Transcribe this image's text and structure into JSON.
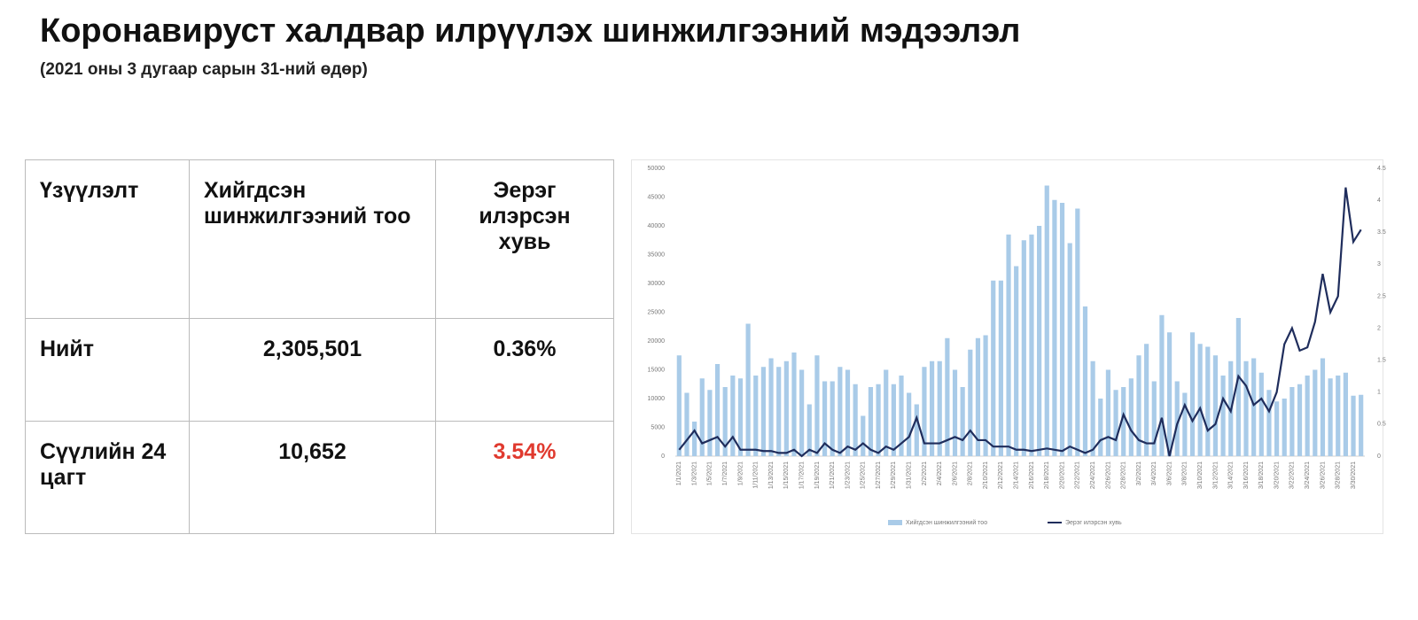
{
  "header": {
    "title": "Коронавируст халдвар илрүүлэх шинжилгээний мэдээлэл",
    "subtitle": "(2021 оны 3 дугаар сарын 31-ний өдөр)"
  },
  "table": {
    "columns": [
      "Үзүүлэлт",
      "Хийгдсэн шинжилгээний тоо",
      "Эерэг илэрсэн хувь"
    ],
    "rows": [
      [
        "Нийт",
        "2,305,501",
        "0.36%"
      ],
      [
        "Сүүлийн 24 цагт",
        "10,652",
        "3.54%"
      ]
    ]
  },
  "chart_data": {
    "type": "bar",
    "categories": [
      "1/1/2021",
      null,
      "1/3/2021",
      null,
      "1/5/2021",
      null,
      "1/7/2021",
      null,
      "1/9/2021",
      null,
      "1/11/2021",
      null,
      "1/13/2021",
      null,
      "1/15/2021",
      null,
      "1/17/2021",
      null,
      "1/19/2021",
      null,
      "1/21/2021",
      null,
      "1/23/2021",
      null,
      "1/25/2021",
      null,
      "1/27/2021",
      null,
      "1/29/2021",
      null,
      "1/31/2021",
      null,
      "2/2/2021",
      null,
      "2/4/2021",
      null,
      "2/6/2021",
      null,
      "2/8/2021",
      null,
      "2/10/2021",
      null,
      "2/12/2021",
      null,
      "2/14/2021",
      null,
      "2/16/2021",
      null,
      "2/18/2021",
      null,
      "2/20/2021",
      null,
      "2/22/2021",
      null,
      "2/24/2021",
      null,
      "2/26/2021",
      null,
      "2/28/2021",
      null,
      "3/2/2021",
      null,
      "3/4/2021",
      null,
      "3/6/2021",
      null,
      "3/8/2021",
      null,
      "3/10/2021",
      null,
      "3/12/2021",
      null,
      "3/14/2021",
      null,
      "3/16/2021",
      null,
      "3/18/2021",
      null,
      "3/20/2021",
      null,
      "3/22/2021",
      null,
      "3/24/2021",
      null,
      "3/26/2021",
      null,
      "3/28/2021",
      null,
      "3/30/2021",
      null
    ],
    "series": [
      {
        "name": "Хийгдсэн шинжилгээний тоо",
        "color": "#a9cbe8",
        "values": [
          17500,
          11000,
          6000,
          13500,
          11500,
          16000,
          12000,
          14000,
          13500,
          23000,
          14000,
          15500,
          17000,
          15500,
          16500,
          18000,
          15000,
          9000,
          17500,
          13000,
          13000,
          15500,
          15000,
          12500,
          7000,
          12000,
          12500,
          15000,
          12500,
          14000,
          11000,
          9000,
          15500,
          16500,
          16500,
          20500,
          15000,
          12000,
          18500,
          20500,
          21000,
          30500,
          30500,
          38500,
          33000,
          37500,
          38500,
          40000,
          47000,
          44500,
          44000,
          37000,
          43000,
          26000,
          16500,
          10000,
          15000,
          11500,
          12000,
          13500,
          17500,
          19500,
          13000,
          24500,
          21500,
          13000,
          11000,
          21500,
          19500,
          19000,
          17500,
          14000,
          16500,
          24000,
          16500,
          17000,
          14500,
          11500,
          9500,
          10000,
          12000,
          12500,
          14000,
          15000,
          17000,
          13500,
          14000,
          14500,
          10500,
          10652
        ]
      },
      {
        "name": "Эерэг илэрсэн хувь",
        "color": "#1f2d5c",
        "type": "line",
        "axis": "y2",
        "values": [
          0.1,
          0.25,
          0.4,
          0.2,
          0.25,
          0.3,
          0.15,
          0.3,
          0.1,
          0.1,
          0.1,
          0.08,
          0.08,
          0.05,
          0.05,
          0.1,
          0,
          0.1,
          0.05,
          0.2,
          0.1,
          0.05,
          0.15,
          0.1,
          0.2,
          0.1,
          0.05,
          0.15,
          0.1,
          0.2,
          0.3,
          0.6,
          0.2,
          0.2,
          0.2,
          0.25,
          0.3,
          0.25,
          0.4,
          0.25,
          0.25,
          0.15,
          0.15,
          0.15,
          0.1,
          0.1,
          0.08,
          0.1,
          0.12,
          0.1,
          0.08,
          0.15,
          0.1,
          0.05,
          0.1,
          0.25,
          0.3,
          0.25,
          0.65,
          0.4,
          0.25,
          0.2,
          0.2,
          0.6,
          0,
          0.5,
          0.8,
          0.55,
          0.75,
          0.4,
          0.5,
          0.9,
          0.7,
          1.25,
          1.1,
          0.8,
          0.9,
          0.7,
          1.0,
          1.75,
          2.0,
          1.65,
          1.7,
          2.1,
          2.85,
          2.25,
          2.5,
          4.2,
          3.35,
          3.54
        ]
      }
    ],
    "ylim": [
      0,
      50000
    ],
    "yticks": [
      0,
      5000,
      10000,
      15000,
      20000,
      25000,
      30000,
      35000,
      40000,
      45000,
      50000
    ],
    "y2lim": [
      0,
      4.5
    ],
    "y2ticks": [
      0,
      0.5,
      1,
      1.5,
      2,
      2.5,
      3,
      3.5,
      4,
      4.5
    ]
  }
}
